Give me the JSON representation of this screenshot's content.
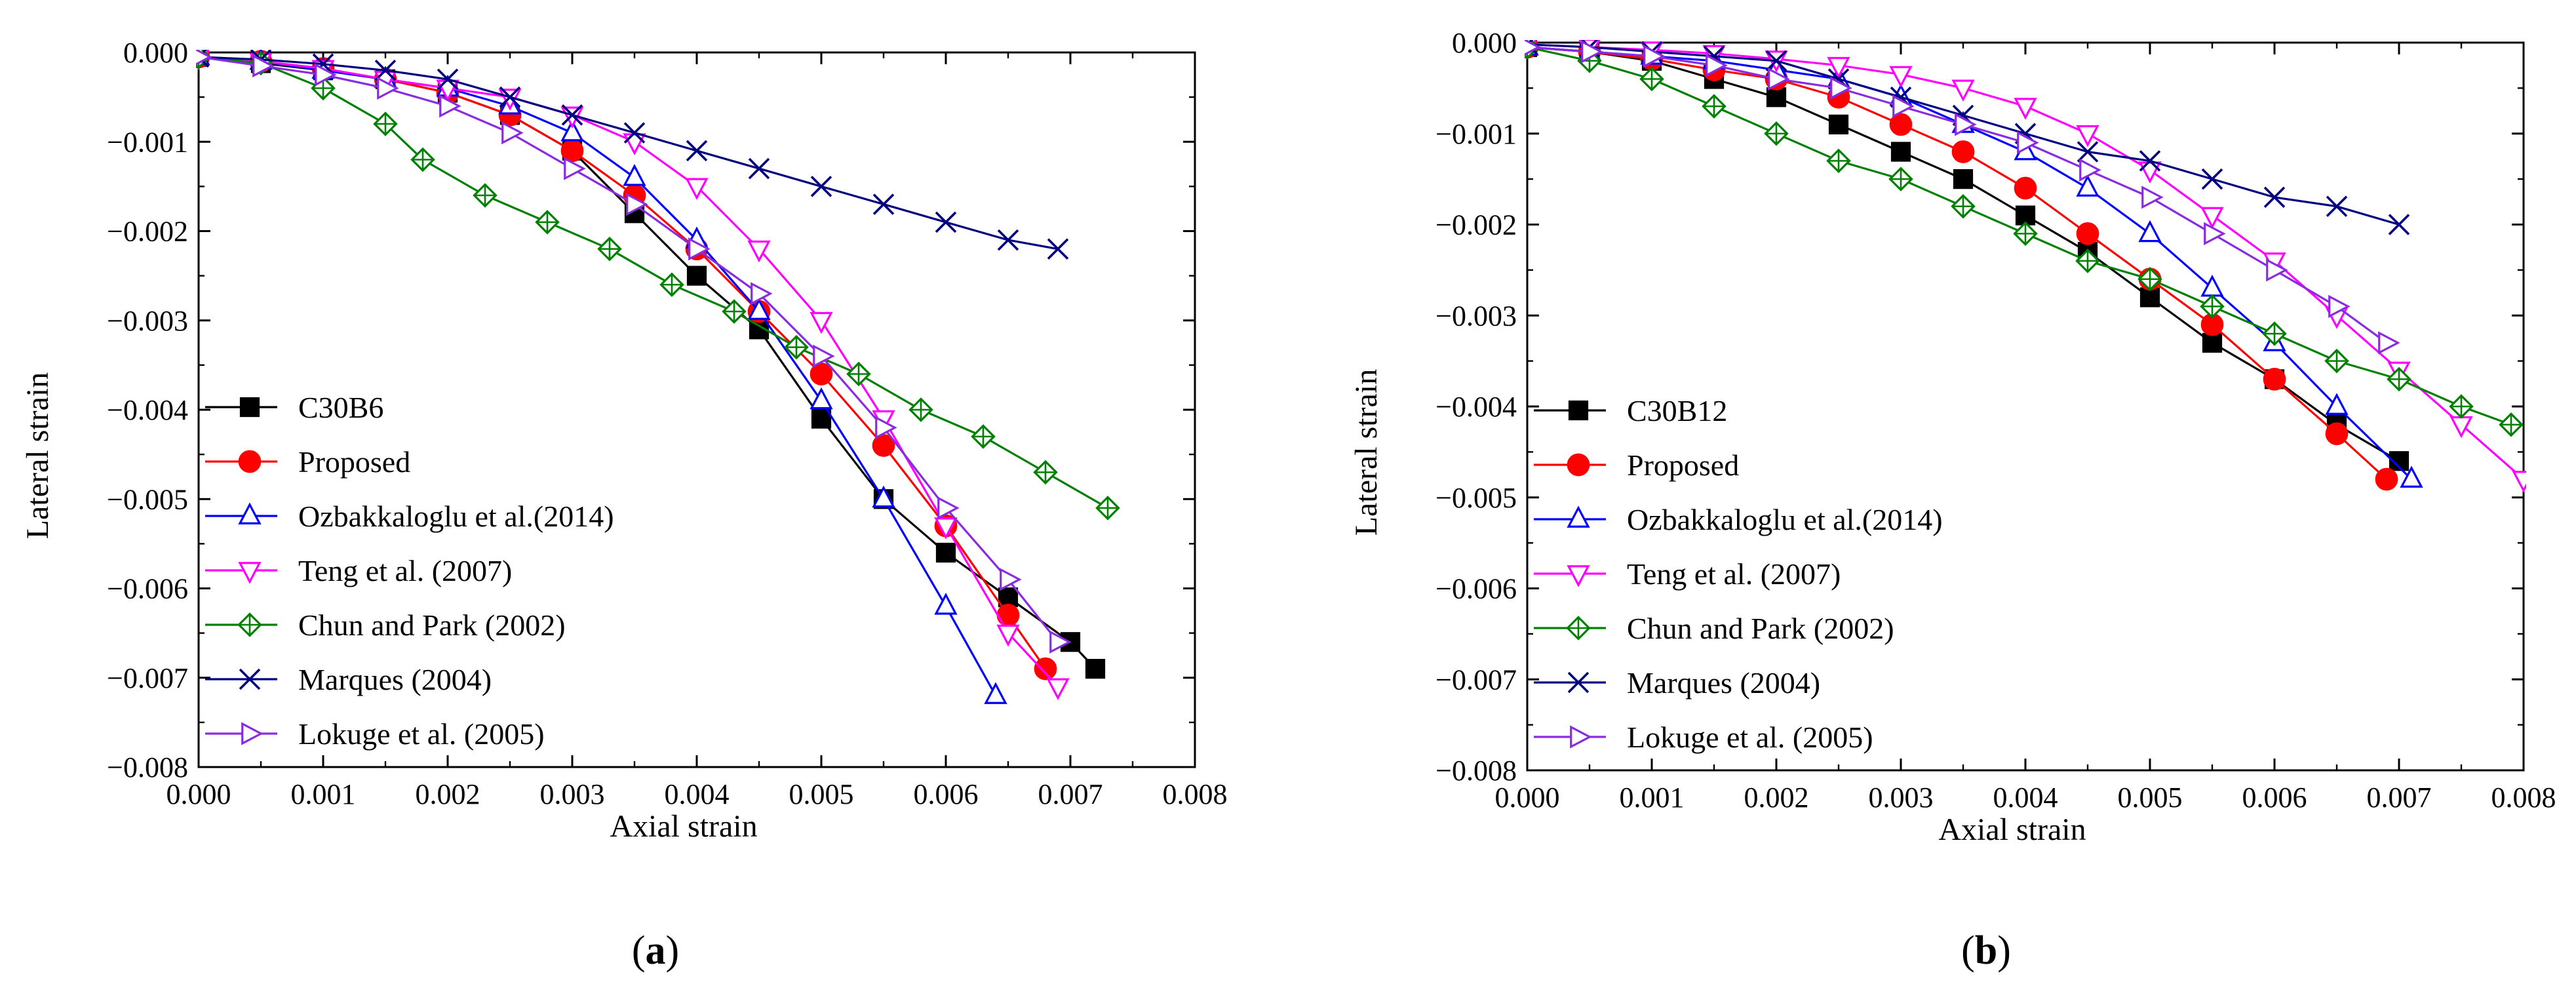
{
  "chart_data": [
    {
      "type": "line",
      "panel_label": "a",
      "xlabel": "Axial strain",
      "ylabel": "Lateral strain",
      "xlim": [
        0.0,
        0.008
      ],
      "ylim": [
        -0.008,
        0.0
      ],
      "x_ticks": [
        "0.000",
        "0.001",
        "0.002",
        "0.003",
        "0.004",
        "0.005",
        "0.006",
        "0.007",
        "0.008"
      ],
      "y_ticks": [
        "0.000",
        "−0.001",
        "−0.002",
        "−0.003",
        "−0.004",
        "−0.005",
        "−0.006",
        "−0.007",
        "−0.008"
      ],
      "legend_position": "bottom-left",
      "series": [
        {
          "name": "C30B6",
          "color": "#000000",
          "marker": "square",
          "filled": true,
          "x": [
            0.0,
            0.0005,
            0.001,
            0.0015,
            0.002,
            0.0025,
            0.003,
            0.0035,
            0.004,
            0.0045,
            0.005,
            0.0055,
            0.006,
            0.0065,
            0.007,
            0.0072
          ],
          "y": [
            -5e-05,
            -0.00012,
            -0.0002,
            -0.0003,
            -0.00045,
            -0.0007,
            -0.0011,
            -0.0018,
            -0.0025,
            -0.0031,
            -0.0041,
            -0.005,
            -0.0056,
            -0.0061,
            -0.0066,
            -0.0069
          ]
        },
        {
          "name": "Proposed",
          "color": "#ff0000",
          "marker": "circle",
          "filled": true,
          "x": [
            0.0,
            0.0005,
            0.001,
            0.0015,
            0.002,
            0.0025,
            0.003,
            0.0035,
            0.004,
            0.0045,
            0.005,
            0.0055,
            0.006,
            0.0065,
            0.0068
          ],
          "y": [
            -5e-05,
            -0.0001,
            -0.00018,
            -0.0003,
            -0.00045,
            -0.0007,
            -0.0011,
            -0.0016,
            -0.0022,
            -0.0029,
            -0.0036,
            -0.0044,
            -0.0053,
            -0.0063,
            -0.0069
          ]
        },
        {
          "name": "Ozbakkaloglu et al.(2014)",
          "color": "#0000ff",
          "marker": "triangle-up",
          "filled": false,
          "x": [
            0.0,
            0.0005,
            0.001,
            0.0015,
            0.002,
            0.0025,
            0.003,
            0.0035,
            0.004,
            0.0045,
            0.005,
            0.0055,
            0.006,
            0.0064
          ],
          "y": [
            -5e-05,
            -0.0001,
            -0.0002,
            -0.0003,
            -0.0004,
            -0.0006,
            -0.0009,
            -0.0014,
            -0.0021,
            -0.0029,
            -0.0039,
            -0.005,
            -0.0062,
            -0.0072
          ]
        },
        {
          "name": "Teng et al. (2007)",
          "color": "#ff00ff",
          "marker": "triangle-down",
          "filled": false,
          "x": [
            0.0,
            0.0005,
            0.001,
            0.0015,
            0.002,
            0.0025,
            0.003,
            0.0035,
            0.004,
            0.0045,
            0.005,
            0.0055,
            0.006,
            0.0065,
            0.0069
          ],
          "y": [
            -5e-05,
            -0.0001,
            -0.00018,
            -0.0003,
            -0.0004,
            -0.0005,
            -0.0007,
            -0.001,
            -0.0015,
            -0.0022,
            -0.003,
            -0.0041,
            -0.0053,
            -0.0065,
            -0.0071
          ]
        },
        {
          "name": "Chun and Park (2002)",
          "color": "#008000",
          "marker": "diamond-cross",
          "filled": false,
          "x": [
            0.0,
            0.0005,
            0.001,
            0.0015,
            0.0018,
            0.0023,
            0.0028,
            0.0033,
            0.0038,
            0.0043,
            0.0048,
            0.0053,
            0.0058,
            0.0063,
            0.0068,
            0.0073
          ],
          "y": [
            -5e-05,
            -0.00012,
            -0.0004,
            -0.0008,
            -0.0012,
            -0.0016,
            -0.0019,
            -0.0022,
            -0.0026,
            -0.0029,
            -0.0033,
            -0.0036,
            -0.004,
            -0.0043,
            -0.0047,
            -0.0051
          ]
        },
        {
          "name": "Marques (2004)",
          "color": "#000080",
          "marker": "x",
          "filled": false,
          "x": [
            0.0,
            0.0005,
            0.001,
            0.0015,
            0.002,
            0.0025,
            0.003,
            0.0035,
            0.004,
            0.0045,
            0.005,
            0.0055,
            0.006,
            0.0065,
            0.0069
          ],
          "y": [
            -5e-05,
            -8e-05,
            -0.00013,
            -0.0002,
            -0.0003,
            -0.0005,
            -0.0007,
            -0.0009,
            -0.0011,
            -0.0013,
            -0.0015,
            -0.0017,
            -0.0019,
            -0.0021,
            -0.0022
          ]
        },
        {
          "name": "Lokuge et al. (2005)",
          "color": "#8a2be2",
          "marker": "triangle-right",
          "filled": false,
          "x": [
            0.0,
            0.0005,
            0.001,
            0.0015,
            0.002,
            0.0025,
            0.003,
            0.0035,
            0.004,
            0.0045,
            0.005,
            0.0055,
            0.006,
            0.0065,
            0.0069
          ],
          "y": [
            -5e-05,
            -0.00015,
            -0.00025,
            -0.0004,
            -0.0006,
            -0.0009,
            -0.0013,
            -0.0017,
            -0.0022,
            -0.0027,
            -0.0034,
            -0.0042,
            -0.0051,
            -0.0059,
            -0.0066
          ]
        }
      ]
    },
    {
      "type": "line",
      "panel_label": "b",
      "xlabel": "Axial strain",
      "ylabel": "Lateral strain",
      "xlim": [
        0.0,
        0.008
      ],
      "ylim": [
        -0.008,
        0.0
      ],
      "x_ticks": [
        "0.000",
        "0.001",
        "0.002",
        "0.003",
        "0.004",
        "0.005",
        "0.006",
        "0.007",
        "0.008"
      ],
      "y_ticks": [
        "0.000",
        "−0.001",
        "−0.002",
        "−0.003",
        "−0.004",
        "−0.005",
        "−0.006",
        "−0.007",
        "−0.008"
      ],
      "legend_position": "bottom-left",
      "series": [
        {
          "name": "C30B12",
          "color": "#000000",
          "marker": "square",
          "filled": true,
          "x": [
            0.0,
            0.0005,
            0.001,
            0.0015,
            0.002,
            0.0025,
            0.003,
            0.0035,
            0.004,
            0.0045,
            0.005,
            0.0055,
            0.006,
            0.0065,
            0.007
          ],
          "y": [
            -5e-05,
            -0.0001,
            -0.0002,
            -0.0004,
            -0.0006,
            -0.0009,
            -0.0012,
            -0.0015,
            -0.0019,
            -0.0023,
            -0.0028,
            -0.0033,
            -0.0037,
            -0.0042,
            -0.0046
          ]
        },
        {
          "name": "Proposed",
          "color": "#ff0000",
          "marker": "circle",
          "filled": true,
          "x": [
            0.0,
            0.0005,
            0.001,
            0.0015,
            0.002,
            0.0025,
            0.003,
            0.0035,
            0.004,
            0.0045,
            0.005,
            0.0055,
            0.006,
            0.0065,
            0.0069
          ],
          "y": [
            -5e-05,
            -0.0001,
            -0.00018,
            -0.0003,
            -0.0004,
            -0.0006,
            -0.0009,
            -0.0012,
            -0.0016,
            -0.0021,
            -0.0026,
            -0.0031,
            -0.0037,
            -0.0043,
            -0.0048
          ]
        },
        {
          "name": "Ozbakkaloglu et al.(2014)",
          "color": "#0000ff",
          "marker": "triangle-up",
          "filled": false,
          "x": [
            0.0,
            0.0005,
            0.001,
            0.0015,
            0.002,
            0.0025,
            0.003,
            0.0035,
            0.004,
            0.0045,
            0.005,
            0.0055,
            0.006,
            0.0065,
            0.0071
          ],
          "y": [
            -5e-05,
            -0.0001,
            -0.00015,
            -0.0002,
            -0.0003,
            -0.0004,
            -0.0006,
            -0.0009,
            -0.0012,
            -0.0016,
            -0.0021,
            -0.0027,
            -0.0033,
            -0.004,
            -0.0048
          ]
        },
        {
          "name": "Teng et al. (2007)",
          "color": "#ff00ff",
          "marker": "triangle-down",
          "filled": false,
          "x": [
            0.0,
            0.0005,
            0.001,
            0.0015,
            0.002,
            0.0025,
            0.003,
            0.0035,
            0.004,
            0.0045,
            0.005,
            0.0055,
            0.006,
            0.0065,
            0.007,
            0.0075,
            0.008
          ],
          "y": [
            -2e-05,
            -5e-05,
            -8e-05,
            -0.00012,
            -0.00018,
            -0.00025,
            -0.00035,
            -0.0005,
            -0.0007,
            -0.001,
            -0.0014,
            -0.0019,
            -0.0024,
            -0.003,
            -0.0036,
            -0.0042,
            -0.0048
          ]
        },
        {
          "name": "Chun and Park (2002)",
          "color": "#008000",
          "marker": "diamond-cross",
          "filled": false,
          "x": [
            0.0,
            0.0005,
            0.001,
            0.0015,
            0.002,
            0.0025,
            0.003,
            0.0035,
            0.004,
            0.0045,
            0.005,
            0.0055,
            0.006,
            0.0065,
            0.007,
            0.0075,
            0.0079
          ],
          "y": [
            -5e-05,
            -0.0002,
            -0.0004,
            -0.0007,
            -0.001,
            -0.0013,
            -0.0015,
            -0.0018,
            -0.0021,
            -0.0024,
            -0.0026,
            -0.0029,
            -0.0032,
            -0.0035,
            -0.0037,
            -0.004,
            -0.0042
          ]
        },
        {
          "name": "Marques (2004)",
          "color": "#000080",
          "marker": "x",
          "filled": false,
          "x": [
            0.0,
            0.0005,
            0.001,
            0.0015,
            0.002,
            0.0025,
            0.003,
            0.0035,
            0.004,
            0.0045,
            0.005,
            0.0055,
            0.006,
            0.0065,
            0.007
          ],
          "y": [
            -2e-05,
            -5e-05,
            -0.0001,
            -0.00015,
            -0.0002,
            -0.0004,
            -0.0006,
            -0.0008,
            -0.001,
            -0.0012,
            -0.0013,
            -0.0015,
            -0.0017,
            -0.0018,
            -0.002
          ]
        },
        {
          "name": "Lokuge et al. (2005)",
          "color": "#8a2be2",
          "marker": "triangle-right",
          "filled": false,
          "x": [
            0.0,
            0.0005,
            0.001,
            0.0015,
            0.002,
            0.0025,
            0.003,
            0.0035,
            0.004,
            0.0045,
            0.005,
            0.0055,
            0.006,
            0.0065,
            0.0069
          ],
          "y": [
            -5e-05,
            -0.0001,
            -0.00015,
            -0.00025,
            -0.0004,
            -0.0005,
            -0.0007,
            -0.0009,
            -0.0011,
            -0.0014,
            -0.0017,
            -0.0021,
            -0.0025,
            -0.0029,
            -0.0033
          ]
        }
      ]
    }
  ]
}
